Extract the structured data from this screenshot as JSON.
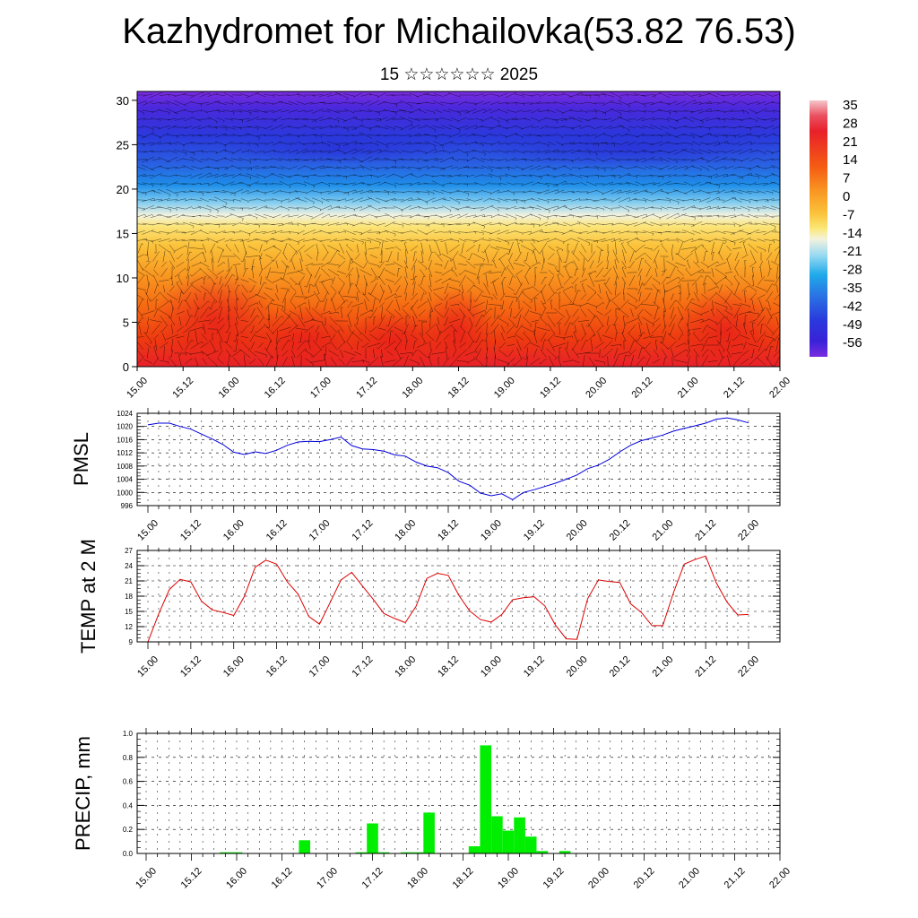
{
  "page": {
    "title": "Kazhydromet for Michailovka(53.82 76.53)",
    "subtitle": "15 ☆☆☆☆☆☆ 2025"
  },
  "colors": {
    "pmsl_line": "#0000dd",
    "temp_line": "#dd0000",
    "precip_bar": "#00ee00"
  },
  "time_labels": [
    "15.00",
    "15.12",
    "16.00",
    "16.12",
    "17.00",
    "17.12",
    "18.00",
    "18.12",
    "19.00",
    "19.12",
    "20.00",
    "20.12",
    "21.00",
    "21.12",
    "22.00"
  ],
  "chart_data": [
    {
      "type": "heatmap",
      "name": "upper-air temperature/wind cross-section",
      "x_ticks": [
        "15.00",
        "15.12",
        "16.00",
        "16.12",
        "17.00",
        "17.12",
        "18.00",
        "18.12",
        "19.00",
        "19.12",
        "20.00",
        "20.12",
        "21.00",
        "21.12",
        "22.00"
      ],
      "y_ticks": [
        "0",
        "5",
        "10",
        "15",
        "20",
        "25",
        "30"
      ],
      "ylim": [
        0,
        31
      ],
      "colorbar_labels": [
        "35",
        "28",
        "21",
        "14",
        "7",
        "0",
        "-7",
        "-14",
        "-21",
        "-28",
        "-35",
        "-42",
        "-49",
        "-56"
      ],
      "colorbar_stops": [
        {
          "value": 35,
          "color": "#f5c6cc"
        },
        {
          "value": 28,
          "color": "#e8202a"
        },
        {
          "value": 21,
          "color": "#ee2a10"
        },
        {
          "value": 14,
          "color": "#f66a12"
        },
        {
          "value": 7,
          "color": "#f99a24"
        },
        {
          "value": 0,
          "color": "#fbc23a"
        },
        {
          "value": -7,
          "color": "#fbe878"
        },
        {
          "value": -14,
          "color": "#f4f2dc"
        },
        {
          "value": -21,
          "color": "#9edcf2"
        },
        {
          "value": -28,
          "color": "#1eaaea"
        },
        {
          "value": -35,
          "color": "#2a74e4"
        },
        {
          "value": -42,
          "color": "#2a38dc"
        },
        {
          "value": -49,
          "color": "#3a22d8"
        },
        {
          "value": -56,
          "color": "#7a2ce0"
        }
      ]
    },
    {
      "type": "line",
      "ylabel": "PMSL",
      "y_ticks": [
        "996",
        "1000",
        "1004",
        "1008",
        "1012",
        "1016",
        "1020",
        "1024"
      ],
      "ylim": [
        996,
        1024
      ],
      "x": [
        0,
        1,
        2,
        3,
        4,
        5,
        6,
        7,
        8,
        9,
        10,
        11,
        12,
        13,
        14,
        15,
        16,
        17,
        18,
        19,
        20,
        21,
        22,
        23,
        24,
        25,
        26,
        27,
        28,
        29,
        30,
        31,
        32,
        33,
        34,
        35,
        36,
        37,
        38,
        39,
        40,
        41,
        42,
        43,
        44,
        45,
        46,
        47,
        48,
        49,
        50,
        51,
        52,
        53,
        54,
        55,
        56
      ],
      "values": [
        1020.5,
        1021.0,
        1021.0,
        1020.0,
        1019.2,
        1017.7,
        1016.2,
        1014.5,
        1012.2,
        1011.5,
        1012.3,
        1011.8,
        1012.8,
        1014.3,
        1015.3,
        1015.5,
        1015.4,
        1016.0,
        1016.8,
        1014.2,
        1013.2,
        1013.0,
        1012.5,
        1011.4,
        1011.0,
        1009.2,
        1008.0,
        1007.5,
        1006.0,
        1003.4,
        1002.2,
        999.8,
        999.0,
        999.6,
        997.8,
        1000.0,
        1000.8,
        1001.8,
        1002.8,
        1004.0,
        1005.3,
        1007.2,
        1008.3,
        1010.0,
        1012.3,
        1014.3,
        1015.7,
        1016.5,
        1017.4,
        1018.6,
        1019.4,
        1020.2,
        1021.0,
        1022.2,
        1022.6,
        1022.0,
        1021.1
      ]
    },
    {
      "type": "line",
      "ylabel": "TEMP at 2 M",
      "y_ticks": [
        "9",
        "12",
        "15",
        "18",
        "21",
        "24",
        "27"
      ],
      "ylim": [
        9,
        27
      ],
      "x": [
        0,
        1,
        2,
        3,
        4,
        5,
        6,
        7,
        8,
        9,
        10,
        11,
        12,
        13,
        14,
        15,
        16,
        17,
        18,
        19,
        20,
        21,
        22,
        23,
        24,
        25,
        26,
        27,
        28,
        29,
        30,
        31,
        32,
        33,
        34,
        35,
        36,
        37,
        38,
        39,
        40,
        41,
        42,
        43,
        44,
        45,
        46,
        47,
        48,
        49,
        50,
        51,
        52,
        53,
        54,
        55,
        56
      ],
      "values": [
        9.0,
        14.5,
        19.3,
        21.3,
        20.8,
        17.0,
        15.3,
        14.8,
        14.2,
        18.0,
        23.7,
        25.1,
        24.3,
        20.8,
        18.4,
        14.0,
        12.5,
        16.8,
        21.2,
        22.7,
        20.0,
        17.4,
        14.6,
        13.6,
        12.8,
        16.0,
        21.5,
        22.5,
        22.1,
        18.1,
        15.1,
        13.4,
        12.9,
        14.4,
        17.3,
        17.7,
        17.9,
        16.1,
        12.3,
        9.6,
        9.5,
        17.5,
        21.2,
        20.9,
        20.7,
        16.5,
        14.8,
        12.2,
        12.2,
        18.7,
        24.3,
        25.2,
        25.9,
        20.6,
        16.8,
        14.3,
        14.4
      ]
    },
    {
      "type": "bar",
      "ylabel": "PRECIP, mm",
      "y_ticks": [
        "0.0",
        "0.2",
        "0.4",
        "0.6",
        "0.8",
        "1.0"
      ],
      "ylim": [
        0,
        1.0
      ],
      "x": [
        0,
        1,
        2,
        3,
        4,
        5,
        6,
        7,
        8,
        9,
        10,
        11,
        12,
        13,
        14,
        15,
        16,
        17,
        18,
        19,
        20,
        21,
        22,
        23,
        24,
        25,
        26,
        27,
        28,
        29,
        30,
        31,
        32,
        33,
        34,
        35,
        36,
        37,
        38,
        39,
        40,
        41,
        42,
        43,
        44,
        45,
        46,
        47,
        48,
        49,
        50,
        51,
        52,
        53,
        54,
        55,
        56
      ],
      "values": [
        0,
        0,
        0,
        0,
        0,
        0,
        0,
        0.01,
        0.01,
        0,
        0,
        0,
        0,
        0,
        0.11,
        0,
        0,
        0,
        0,
        0.01,
        0.25,
        0.01,
        0,
        0.01,
        0.01,
        0.34,
        0,
        0,
        0,
        0.06,
        0.9,
        0.31,
        0.19,
        0.3,
        0.14,
        0.02,
        0,
        0.02,
        0,
        0,
        0,
        0,
        0,
        0,
        0,
        0,
        0,
        0,
        0,
        0,
        0,
        0,
        0,
        0,
        0,
        0,
        0
      ]
    }
  ]
}
